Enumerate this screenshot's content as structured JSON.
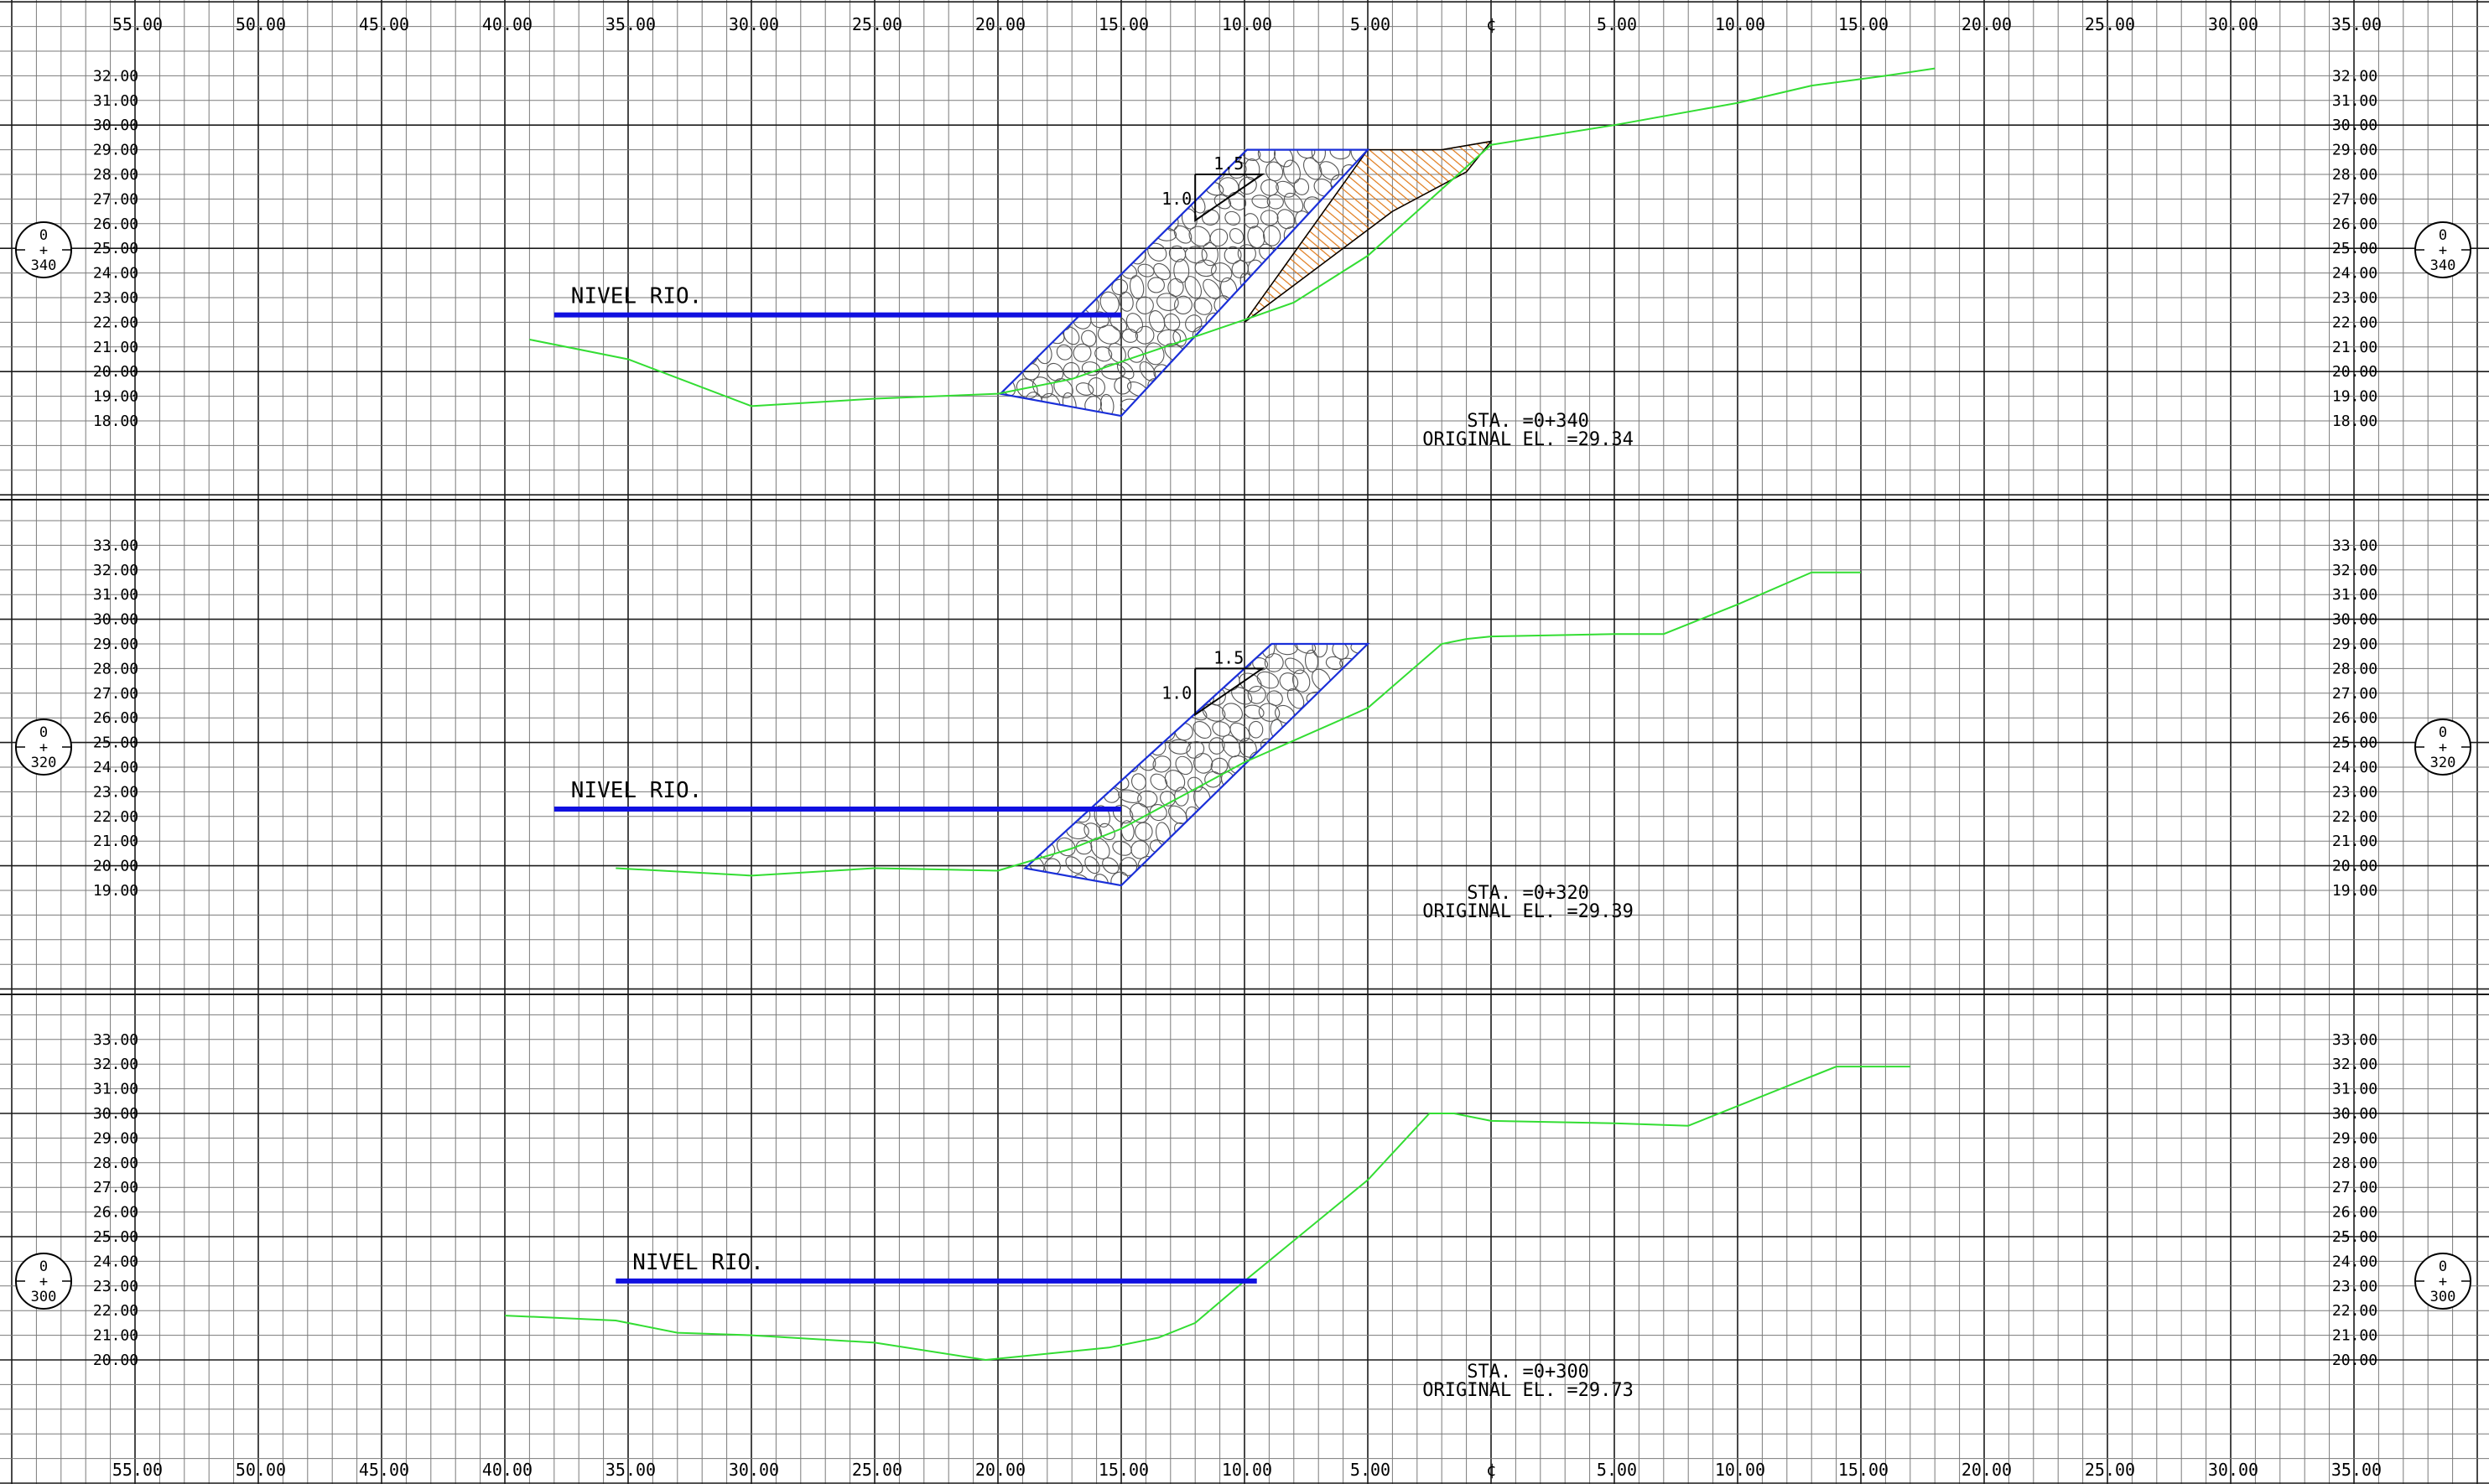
{
  "sheet": {
    "grid_unit_m": 1.0,
    "top_axis_labels": [
      "55.00",
      "50.00",
      "45.00",
      "40.00",
      "35.00",
      "30.00",
      "25.00",
      "20.00",
      "15.00",
      "10.00",
      "5.00",
      "¢",
      "5.00",
      "10.00",
      "15.00",
      "20.00",
      "25.00",
      "30.00",
      "35.00"
    ],
    "bottom_axis_labels": [
      "55.00",
      "50.00",
      "45.00",
      "40.00",
      "35.00",
      "30.00",
      "25.00",
      "20.00",
      "15.00",
      "10.00",
      "5.00",
      "¢",
      "5.00",
      "10.00",
      "15.00",
      "20.00",
      "25.00",
      "30.00",
      "35.00"
    ],
    "axis_offsets": [
      -55,
      -50,
      -45,
      -40,
      -35,
      -30,
      -25,
      -20,
      -15,
      -10,
      -5,
      0,
      5,
      10,
      15,
      20,
      25,
      30,
      35
    ],
    "colors": {
      "grid_minor": "#7a7a7a",
      "grid_major": "#1a1a1a",
      "terrain": "#33dd33",
      "riprap_outline": "#1a2fd8",
      "river_line": "#1010e0",
      "fill_hatch": "#e07a1a",
      "text": "#000000"
    }
  },
  "sections": [
    {
      "id": "0+340",
      "badge": {
        "top": "0",
        "mid": "+",
        "bottom": "340"
      },
      "sta_label": "STA. =0+340",
      "original_el_label": "ORIGINAL EL. =29.34",
      "river_label": "NIVEL RIO.",
      "river_level": 22.3,
      "river_start_offset": -38.0,
      "river_end_offset": -15.0,
      "elev_labels_left": [
        "32.00",
        "31.00",
        "30.00",
        "29.00",
        "28.00",
        "27.00",
        "26.00",
        "25.00",
        "24.00",
        "23.00",
        "22.00",
        "21.00",
        "20.00",
        "19.00",
        "18.00"
      ],
      "elev_labels_right": [
        "32.00",
        "31.00",
        "30.00",
        "29.00",
        "28.00",
        "27.00",
        "26.00",
        "25.00",
        "24.00",
        "23.00",
        "22.00",
        "21.00",
        "20.00",
        "19.00",
        "18.00"
      ],
      "elev_values": [
        32,
        31,
        30,
        29,
        28,
        27,
        26,
        25,
        24,
        23,
        22,
        21,
        20,
        19,
        18
      ],
      "slope": {
        "h": "1.5",
        "v": "1.0"
      },
      "terrain_profile": [
        [
          -39,
          21.3
        ],
        [
          -35,
          20.5
        ],
        [
          -30,
          18.6
        ],
        [
          -25,
          18.9
        ],
        [
          -20,
          19.1
        ],
        [
          -17,
          19.7
        ],
        [
          -15,
          20.4
        ],
        [
          -10,
          22.1
        ],
        [
          -8,
          22.8
        ],
        [
          -5,
          24.7
        ],
        [
          0,
          29.2
        ],
        [
          5,
          30.0
        ],
        [
          10,
          30.9
        ],
        [
          13,
          31.6
        ],
        [
          16,
          32.0
        ],
        [
          18,
          32.3
        ]
      ],
      "riprap_outline": [
        [
          -19.9,
          19.1
        ],
        [
          -15,
          18.2
        ],
        [
          -5,
          29.0
        ],
        [
          -9.9,
          29.0
        ]
      ],
      "fill_region": [
        [
          -10,
          22.0
        ],
        [
          -5,
          29.0
        ],
        [
          -2,
          29.0
        ],
        [
          0,
          29.34
        ],
        [
          -1,
          28.1
        ],
        [
          -4,
          26.5
        ]
      ],
      "has_riprap": true,
      "has_fill": true
    },
    {
      "id": "0+320",
      "badge": {
        "top": "0",
        "mid": "+",
        "bottom": "320"
      },
      "sta_label": "STA. =0+320",
      "original_el_label": "ORIGINAL EL. =29.39",
      "river_label": "NIVEL RIO.",
      "river_level": 22.3,
      "river_start_offset": -38.0,
      "river_end_offset": -15.0,
      "elev_labels_left": [
        "33.00",
        "32.00",
        "31.00",
        "30.00",
        "29.00",
        "28.00",
        "27.00",
        "26.00",
        "25.00",
        "24.00",
        "23.00",
        "22.00",
        "21.00",
        "20.00",
        "19.00"
      ],
      "elev_labels_right": [
        "33.00",
        "32.00",
        "31.00",
        "30.00",
        "29.00",
        "28.00",
        "27.00",
        "26.00",
        "25.00",
        "24.00",
        "23.00",
        "22.00",
        "21.00",
        "20.00",
        "19.00"
      ],
      "elev_values": [
        33,
        32,
        31,
        30,
        29,
        28,
        27,
        26,
        25,
        24,
        23,
        22,
        21,
        20,
        19
      ],
      "slope": {
        "h": "1.5",
        "v": "1.0"
      },
      "terrain_profile": [
        [
          -35.5,
          19.9
        ],
        [
          -30,
          19.6
        ],
        [
          -25,
          19.9
        ],
        [
          -20,
          19.8
        ],
        [
          -17,
          20.7
        ],
        [
          -15,
          21.5
        ],
        [
          -10,
          24.2
        ],
        [
          -5,
          26.4
        ],
        [
          -2,
          29.0
        ],
        [
          -1,
          29.2
        ],
        [
          0,
          29.3
        ],
        [
          5,
          29.4
        ],
        [
          7,
          29.4
        ],
        [
          10,
          30.6
        ],
        [
          13,
          31.9
        ],
        [
          15,
          31.9
        ]
      ],
      "riprap_outline": [
        [
          -18.9,
          19.9
        ],
        [
          -15,
          19.2
        ],
        [
          -5,
          29.0
        ],
        [
          -8.9,
          29.0
        ]
      ],
      "fill_region": [],
      "has_riprap": true,
      "has_fill": false
    },
    {
      "id": "0+300",
      "badge": {
        "top": "0",
        "mid": "+",
        "bottom": "300"
      },
      "sta_label": "STA. =0+300",
      "original_el_label": "ORIGINAL EL. =29.73",
      "river_label": "NIVEL RIO.",
      "river_level": 23.2,
      "river_start_offset": -35.5,
      "river_end_offset": -9.5,
      "elev_labels_left": [
        "33.00",
        "32.00",
        "31.00",
        "30.00",
        "29.00",
        "28.00",
        "27.00",
        "26.00",
        "25.00",
        "24.00",
        "23.00",
        "22.00",
        "21.00",
        "20.00"
      ],
      "elev_labels_right": [
        "33.00",
        "32.00",
        "31.00",
        "30.00",
        "29.00",
        "28.00",
        "27.00",
        "26.00",
        "25.00",
        "24.00",
        "23.00",
        "22.00",
        "21.00",
        "20.00"
      ],
      "elev_values": [
        33,
        32,
        31,
        30,
        29,
        28,
        27,
        26,
        25,
        24,
        23,
        22,
        21,
        20
      ],
      "slope": {
        "h": "",
        "v": ""
      },
      "terrain_profile": [
        [
          -40,
          21.8
        ],
        [
          -35.5,
          21.6
        ],
        [
          -33,
          21.1
        ],
        [
          -30,
          21.0
        ],
        [
          -25,
          20.7
        ],
        [
          -20.5,
          20.0
        ],
        [
          -15.5,
          20.5
        ],
        [
          -13.5,
          20.9
        ],
        [
          -12,
          21.5
        ],
        [
          -10,
          23.2
        ],
        [
          -5,
          27.3
        ],
        [
          -2.5,
          30.0
        ],
        [
          -1.5,
          30.0
        ],
        [
          0,
          29.7
        ],
        [
          5,
          29.6
        ],
        [
          8,
          29.5
        ],
        [
          10,
          30.3
        ],
        [
          14,
          31.9
        ],
        [
          17,
          31.9
        ]
      ],
      "riprap_outline": [],
      "fill_region": [],
      "has_riprap": false,
      "has_fill": false
    }
  ]
}
